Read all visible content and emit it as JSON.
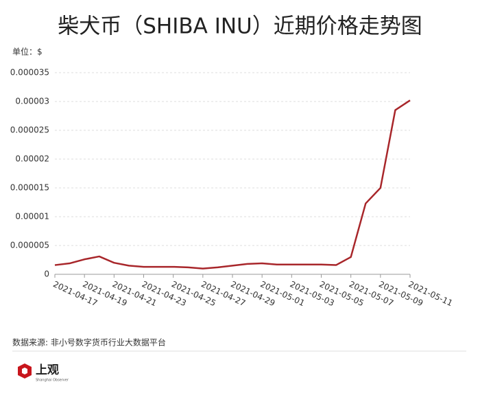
{
  "chart_data": {
    "type": "line",
    "title": "柴犬币（SHIBA INU）近期价格走势图",
    "unit_label": "单位：$",
    "categories": [
      "2021-04-17",
      null,
      "2021-04-19",
      null,
      "2021-04-21",
      null,
      "2021-04-23",
      null,
      "2021-04-25",
      null,
      "2021-04-27",
      null,
      "2021-04-29",
      null,
      "2021-05-01",
      null,
      "2021-05-03",
      null,
      "2021-05-05",
      null,
      "2021-05-07",
      null,
      "2021-05-09",
      null,
      "2021-05-11"
    ],
    "series": [
      {
        "name": "SHIBA INU",
        "color": "#a8262a",
        "values": [
          1.6e-06,
          1.9e-06,
          2.6e-06,
          3.1e-06,
          2e-06,
          1.5e-06,
          1.3e-06,
          1.3e-06,
          1.3e-06,
          1.2e-06,
          1e-06,
          1.2e-06,
          1.5e-06,
          1.8e-06,
          1.9e-06,
          1.7e-06,
          1.7e-06,
          1.7e-06,
          1.7e-06,
          1.6e-06,
          3e-06,
          1.23e-05,
          1.5e-05,
          2.85e-05,
          3.02e-05
        ]
      }
    ],
    "ylim": [
      0,
      3.5e-05
    ],
    "yticks": [
      0,
      5e-06,
      1e-05,
      1.5e-05,
      2e-05,
      2.5e-05,
      3e-05,
      3.5e-05
    ],
    "grid": true
  },
  "source": "数据来源: 非小号数字货币行业大数据平台",
  "logo": {
    "name": "上观",
    "subtitle": "Shanghai Observer"
  }
}
